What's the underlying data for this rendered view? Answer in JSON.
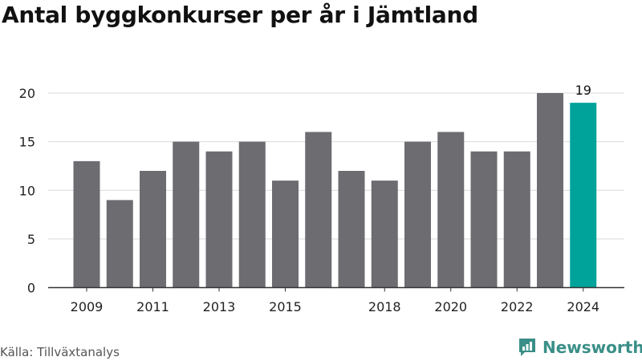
{
  "header": {
    "title": "Antal byggkonkurser per år i Jämtland"
  },
  "chart_data": {
    "type": "bar",
    "title": "Antal byggkonkurser per år i Jämtland",
    "xlabel": "",
    "ylabel": "",
    "categories": [
      "2009",
      "2010",
      "2011",
      "2012",
      "2013",
      "2014",
      "2015",
      "2016",
      "2017",
      "2018",
      "2019",
      "2020",
      "2021",
      "2022",
      "2023",
      "2024"
    ],
    "values": [
      13,
      9,
      12,
      15,
      14,
      15,
      11,
      16,
      12,
      11,
      15,
      16,
      14,
      14,
      20,
      19
    ],
    "xtick_labels": [
      "2009",
      "2011",
      "2013",
      "2015",
      "2018",
      "2020",
      "2022",
      "2024"
    ],
    "yticks": [
      0,
      5,
      10,
      15,
      20
    ],
    "ylim": [
      0,
      20
    ],
    "grid": true,
    "highlight_category": "2024",
    "data_labels": [
      {
        "category": "2024",
        "text": "19"
      }
    ],
    "colors": {
      "bar": "#6d6c71",
      "highlight": "#00a39a",
      "grid": "#d9d9d9",
      "axis": "#333333"
    }
  },
  "footer": {
    "source": "Källa: Tillväxtanalys",
    "brand": "Newsworthy"
  }
}
